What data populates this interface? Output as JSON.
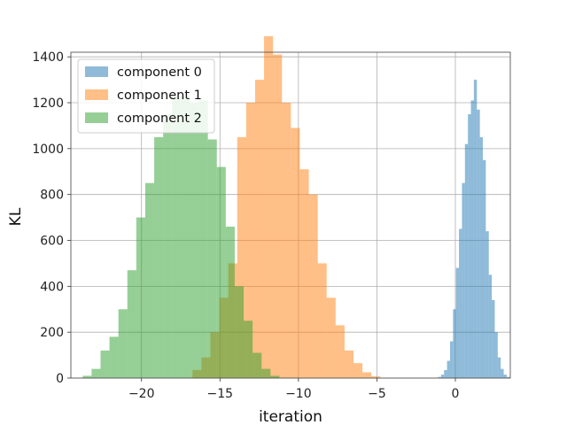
{
  "chart_data": {
    "type": "histogram",
    "xlabel": "iteration",
    "ylabel": "KL",
    "xlim": [
      -24.5,
      3.5
    ],
    "ylim": [
      0,
      1420
    ],
    "x_ticks": [
      -20,
      -15,
      -10,
      -5,
      0
    ],
    "x_tick_labels": [
      "−20",
      "−15",
      "−10",
      "−5",
      "0"
    ],
    "y_ticks": [
      0,
      200,
      400,
      600,
      800,
      1000,
      1200,
      1400
    ],
    "y_tick_labels": [
      "0",
      "200",
      "400",
      "600",
      "800",
      "1000",
      "1200",
      "1400"
    ],
    "grid": true,
    "legend_position": "top-left",
    "colors": {
      "component 0": "#1f77b4",
      "component 1": "#ff7f0e",
      "component 2": "#2ca02c",
      "bar_alpha": 0.5
    },
    "series": [
      {
        "name": "component 0",
        "bin_start": -1.1,
        "bin_width": 0.19,
        "counts": [
          5,
          15,
          35,
          75,
          160,
          300,
          480,
          650,
          850,
          1020,
          1150,
          1210,
          1300,
          1170,
          1050,
          950,
          640,
          450,
          340,
          200,
          90,
          40,
          15,
          5
        ]
      },
      {
        "name": "component 1",
        "bin_start": -16.75,
        "bin_width": 0.57,
        "counts": [
          35,
          90,
          200,
          350,
          500,
          1050,
          1200,
          1300,
          1490,
          1410,
          1200,
          1090,
          910,
          800,
          500,
          350,
          230,
          120,
          65,
          25,
          8
        ]
      },
      {
        "name": "component 2",
        "bin_start": -23.75,
        "bin_width": 0.57,
        "counts": [
          10,
          40,
          120,
          180,
          300,
          470,
          700,
          850,
          1050,
          1150,
          1225,
          1230,
          1200,
          1210,
          1040,
          920,
          660,
          400,
          250,
          110,
          40,
          10
        ]
      }
    ],
    "legend": [
      "component 0",
      "component 1",
      "component 2"
    ]
  }
}
